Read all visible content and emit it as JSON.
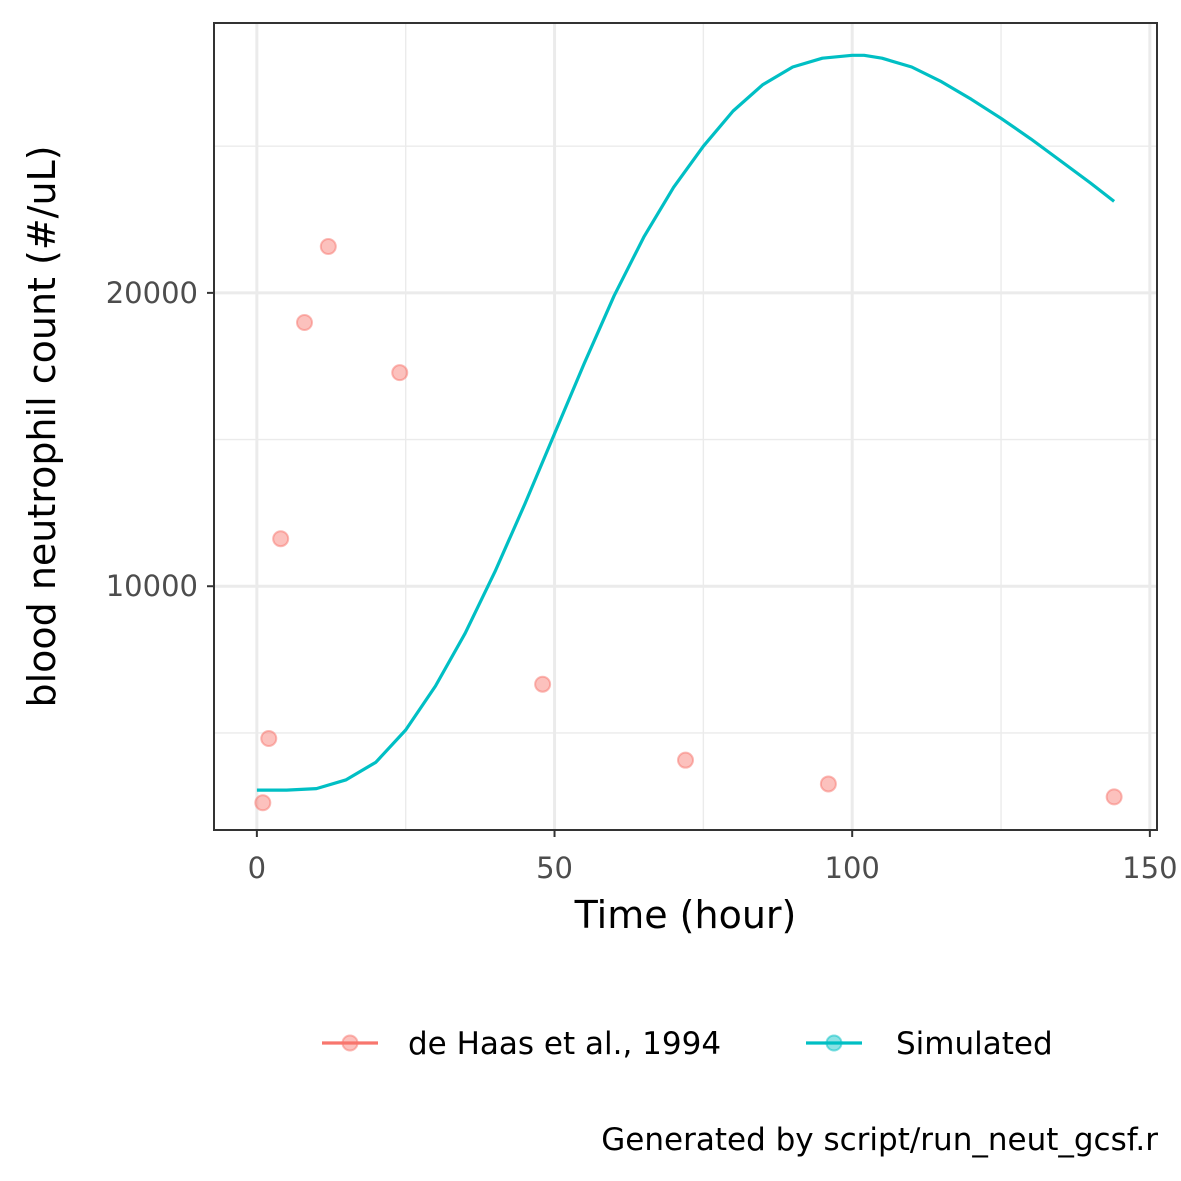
{
  "chart_data": {
    "type": "line",
    "title": "",
    "xlabel": "Time (hour)",
    "ylabel": "blood neutrophil count (#/uL)",
    "xlim": [
      -7.2,
      151.2
    ],
    "ylim": [
      1690,
      29200
    ],
    "x_ticks": [
      0,
      50,
      100,
      150
    ],
    "y_ticks": [
      10000,
      20000
    ],
    "x_minor_ticks": [
      25,
      75,
      125
    ],
    "y_minor_ticks": [
      5000,
      15000,
      25000
    ],
    "x_tick_labels": [
      "0",
      "50",
      "100",
      "150"
    ],
    "y_tick_labels": [
      "10000",
      "20000"
    ],
    "grid": true,
    "legend_position": "bottom",
    "series": [
      {
        "name": "de Haas et al., 1994",
        "kind": "points",
        "color": "#F8766D",
        "x": [
          1,
          2,
          4,
          8,
          12,
          24,
          48,
          72,
          96,
          144
        ],
        "y": [
          2620,
          4810,
          11620,
          18990,
          21580,
          17280,
          6660,
          4070,
          3260,
          2820
        ]
      },
      {
        "name": "Simulated",
        "kind": "line",
        "color": "#00BFC4",
        "x": [
          0,
          5,
          10,
          15,
          20,
          25,
          30,
          35,
          40,
          45,
          50,
          55,
          60,
          65,
          70,
          75,
          80,
          85,
          90,
          95,
          100,
          102,
          105,
          110,
          115,
          120,
          125,
          130,
          135,
          140,
          144
        ],
        "y": [
          3050,
          3050,
          3100,
          3400,
          4000,
          5100,
          6600,
          8400,
          10500,
          12800,
          15200,
          17600,
          19900,
          21900,
          23600,
          25000,
          26200,
          27100,
          27700,
          28000,
          28100,
          28100,
          28000,
          27700,
          27200,
          26600,
          25950,
          25250,
          24500,
          23750,
          23120
        ]
      }
    ]
  },
  "caption": "Generated by script/run_neut_gcsf.r"
}
